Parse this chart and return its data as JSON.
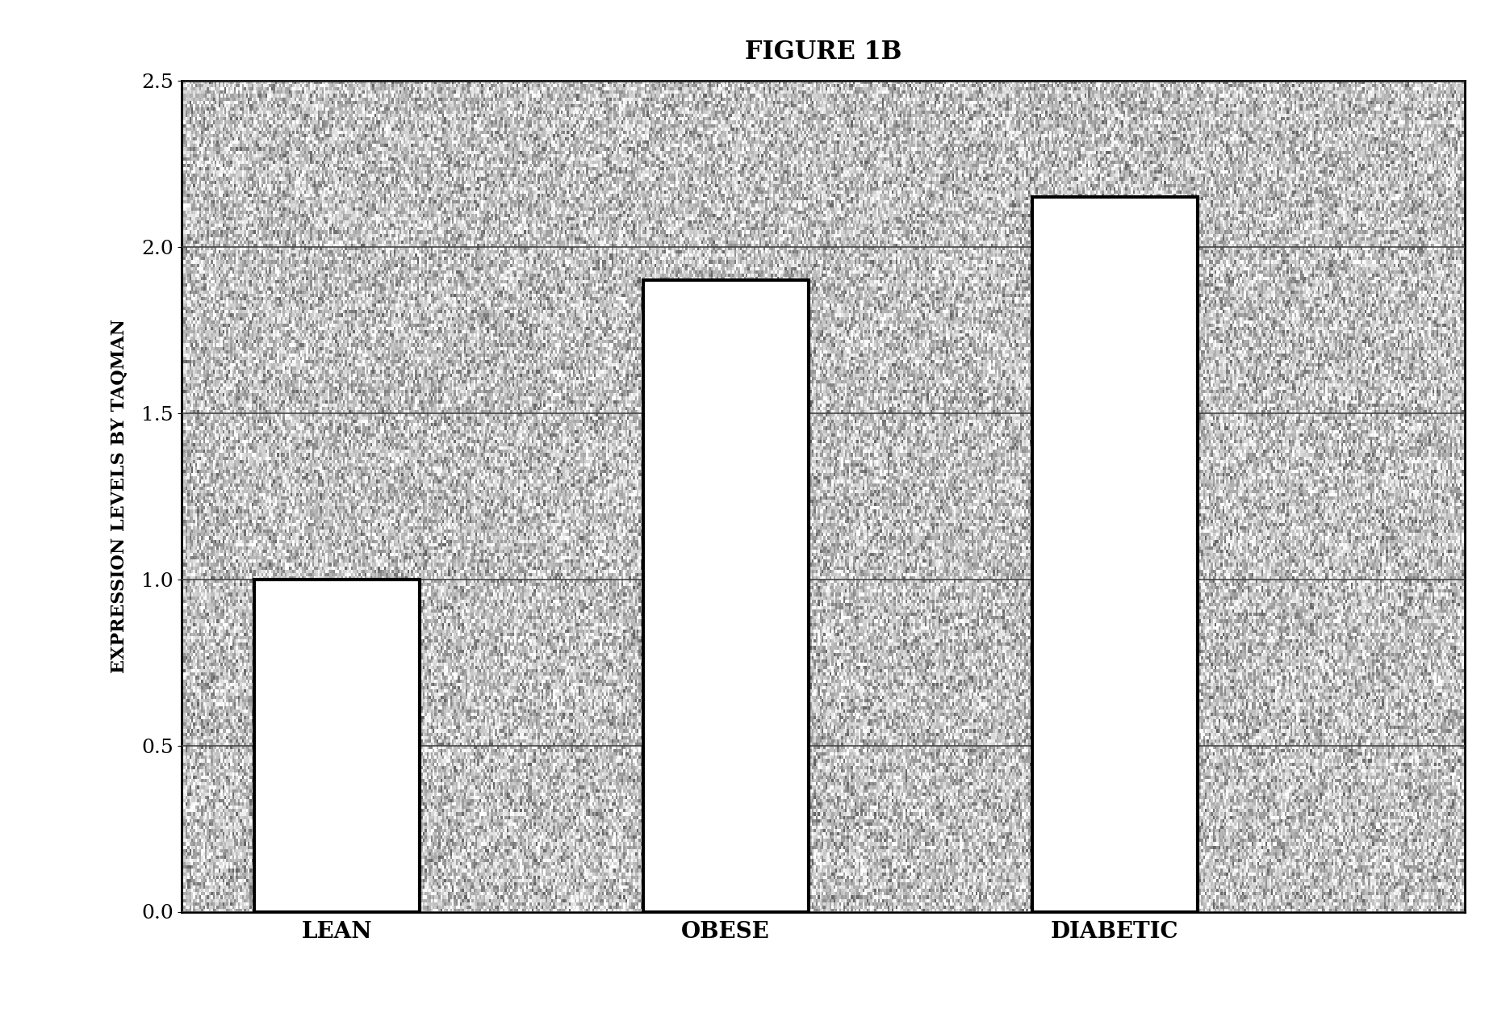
{
  "title": "FIGURE 1B",
  "categories": [
    "LEAN",
    "OBESE",
    "DIABETIC"
  ],
  "values": [
    1.0,
    1.9,
    2.15
  ],
  "bar_positions": [
    1,
    3,
    5
  ],
  "bar_width": 0.85,
  "bar_facecolor": "white",
  "bar_edgecolor": "black",
  "bar_linewidth": 3.0,
  "ylabel": "EXPRESSION LEVELS BY TAQMAN",
  "ylim": [
    0,
    2.5
  ],
  "yticks": [
    0,
    0.5,
    1.0,
    1.5,
    2.0,
    2.5
  ],
  "grid_color": "#444444",
  "grid_linewidth": 1.2,
  "background_color": "#ffffff",
  "axes_background": "#c8c8c8",
  "title_fontsize": 22,
  "ylabel_fontsize": 16,
  "tick_fontsize": 18,
  "xtick_fontsize": 20,
  "spine_linewidth": 2.0,
  "noise_seed": 42,
  "noise_intensity": 60
}
